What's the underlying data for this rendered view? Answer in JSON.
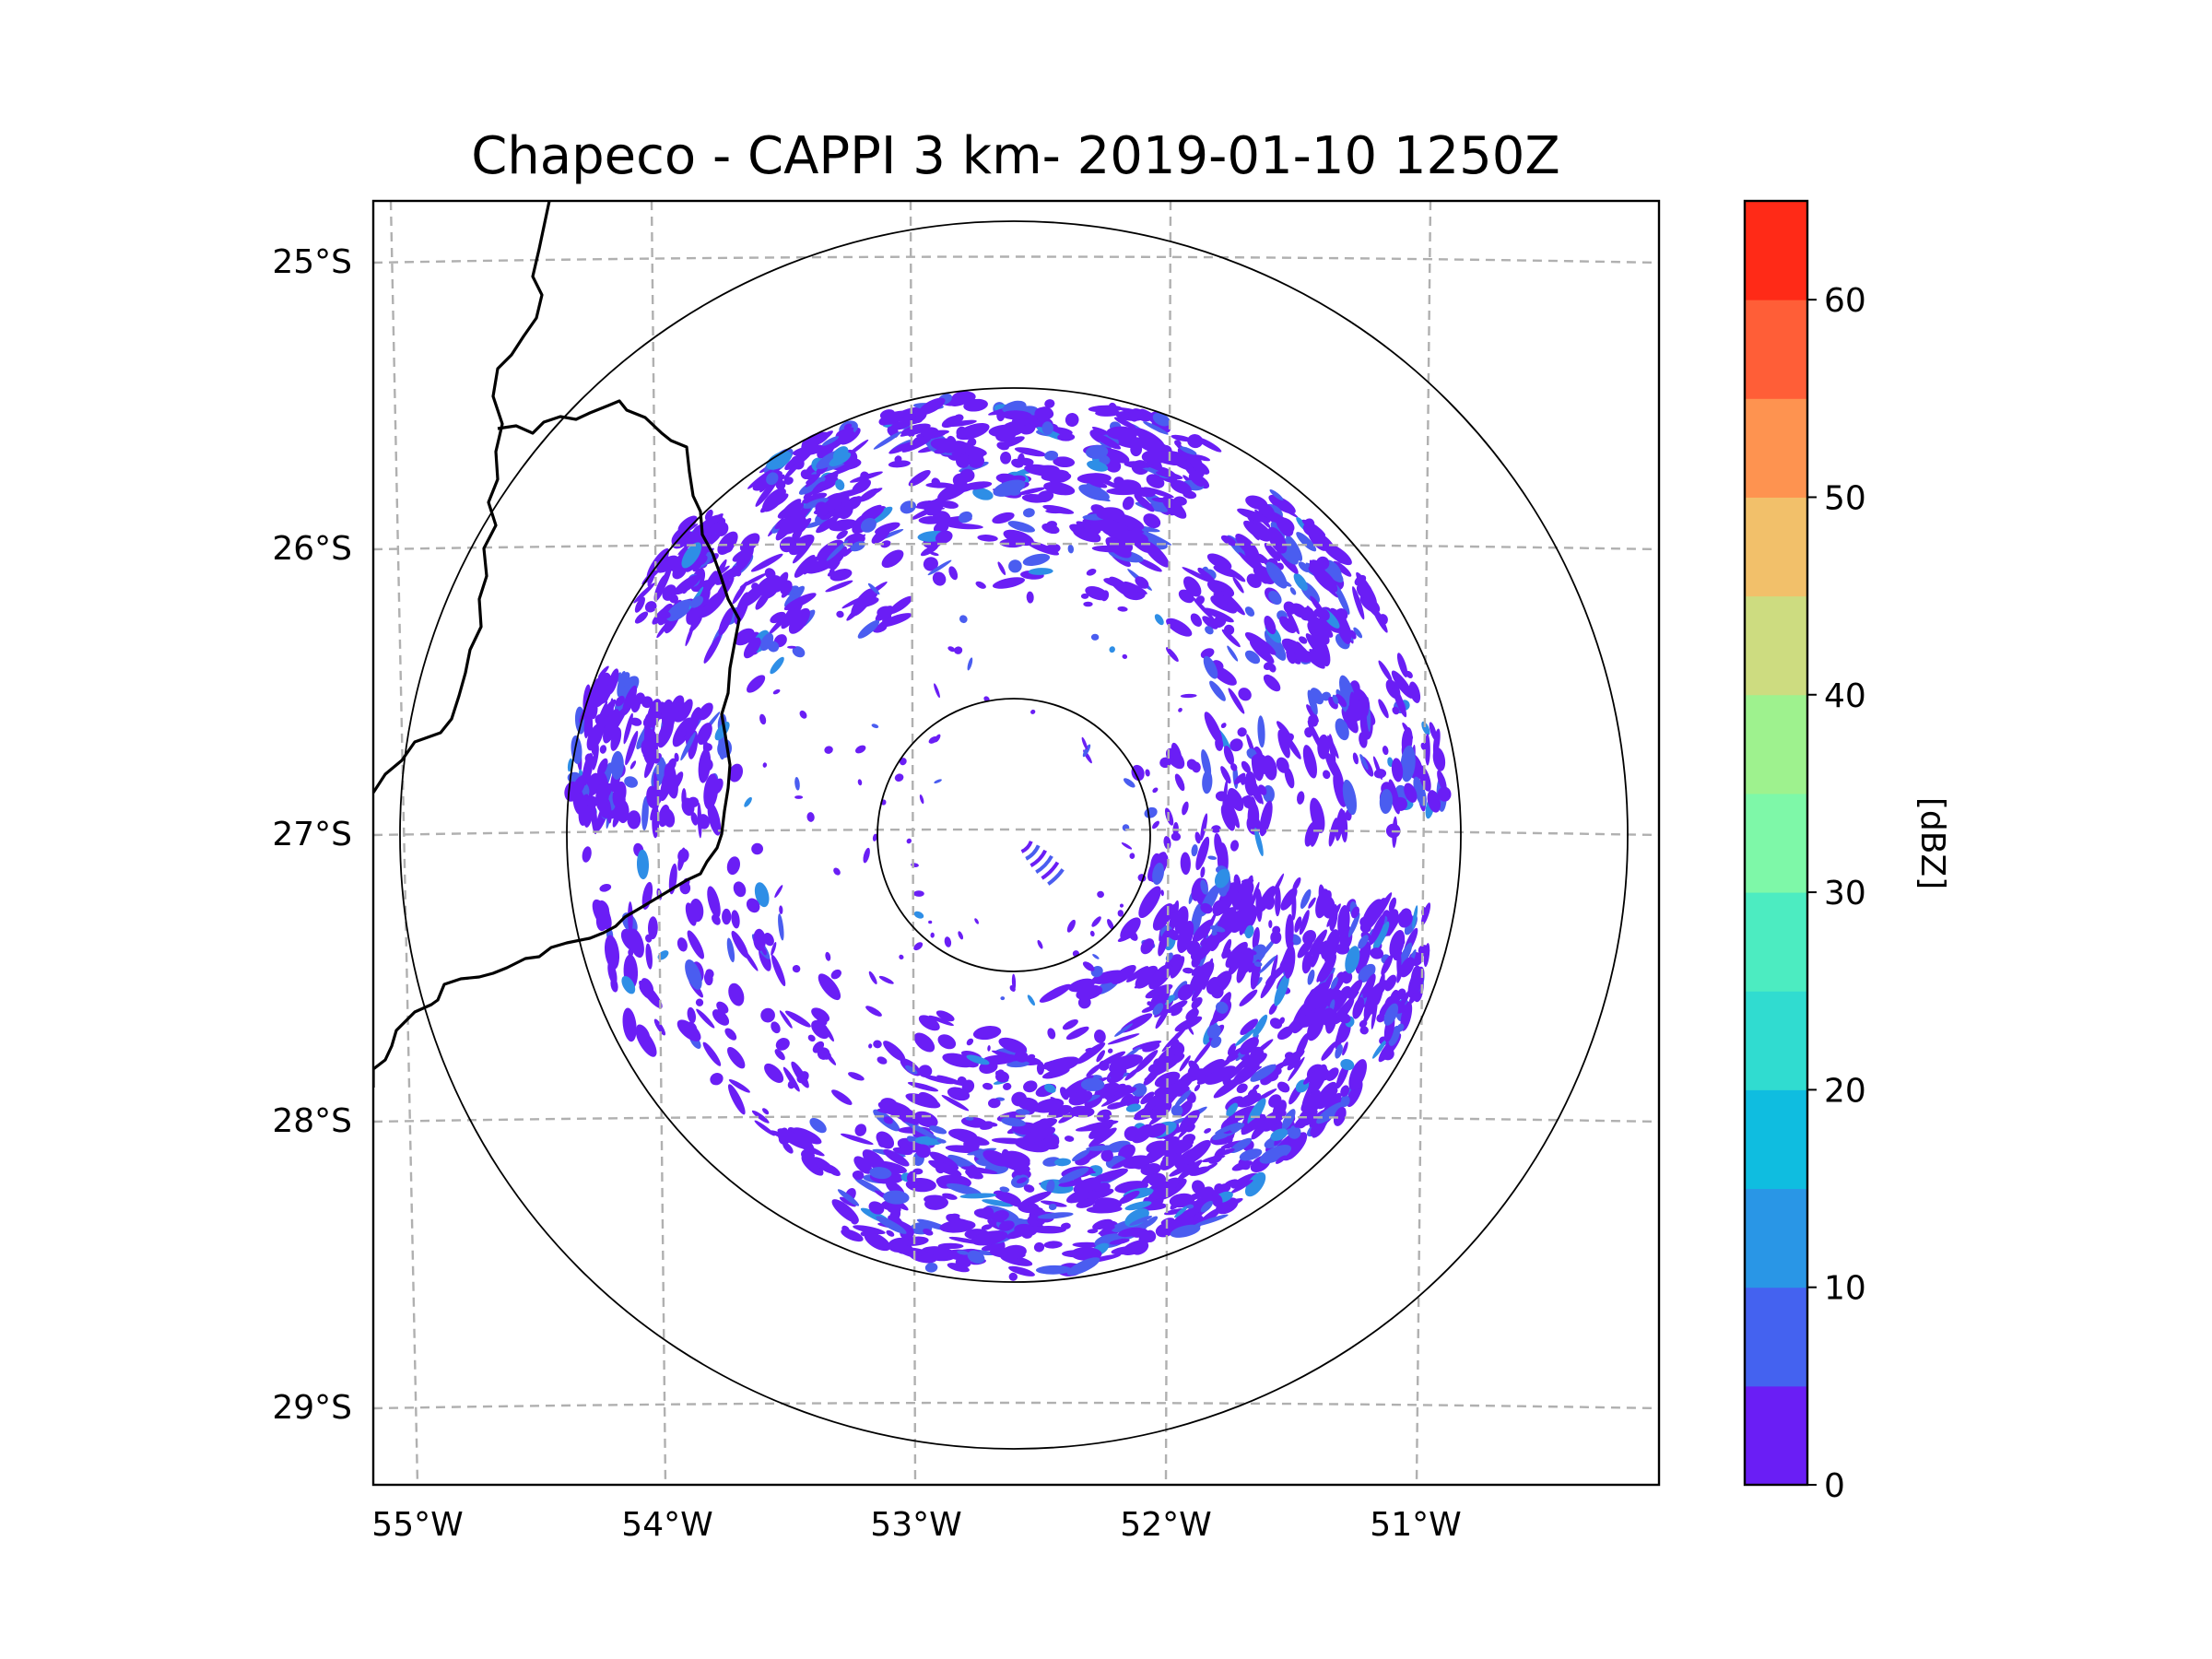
{
  "map": {
    "title": "Chapeco - CAPPI 3 km- 2019-01-10 1250Z",
    "longitude_labels": [
      {
        "text": "55°W",
        "lon": -55
      },
      {
        "text": "54°W",
        "lon": -54
      },
      {
        "text": "53°W",
        "lon": -53
      },
      {
        "text": "52°W",
        "lon": -52
      },
      {
        "text": "51°W",
        "lon": -51
      }
    ],
    "latitude_labels": [
      {
        "text": "25°S",
        "lat": -25
      },
      {
        "text": "26°S",
        "lat": -26
      },
      {
        "text": "27°S",
        "lat": -27
      },
      {
        "text": "28°S",
        "lat": -28
      },
      {
        "text": "29°S",
        "lat": -29
      }
    ],
    "extent": {
      "lon_min": -55.17,
      "lon_max": -50.05,
      "lat_min": -29.27,
      "lat_max": -24.77
    },
    "radar": {
      "name": "Chapeco",
      "lon": -52.6,
      "lat": -27.03,
      "range_rings_km": [
        50,
        150,
        250
      ]
    },
    "gridlines": "dashed gray",
    "colors": {
      "frame": "#000000",
      "gridline": "#b0b0b0",
      "boundary": "#000000",
      "range_ring": "#000000",
      "echo_primary": "#6a1ef5",
      "echo_secondary": "#4a5df0",
      "echo_tertiary": "#2e8ee6"
    }
  },
  "colorbar": {
    "label": "[dBZ]",
    "ticks": [
      "0",
      "10",
      "20",
      "30",
      "40",
      "50",
      "60"
    ],
    "tick_values": [
      0,
      10,
      20,
      30,
      40,
      50,
      60
    ],
    "min": 0,
    "max": 65,
    "levels": [
      {
        "from": 0,
        "to": 5,
        "color": "#6a1ef5"
      },
      {
        "from": 5,
        "to": 10,
        "color": "#4462f0"
      },
      {
        "from": 10,
        "to": 15,
        "color": "#2996e6"
      },
      {
        "from": 15,
        "to": 20,
        "color": "#0fbde0"
      },
      {
        "from": 20,
        "to": 25,
        "color": "#30dcd0"
      },
      {
        "from": 25,
        "to": 30,
        "color": "#4cecc1"
      },
      {
        "from": 30,
        "to": 35,
        "color": "#7ef8a8"
      },
      {
        "from": 35,
        "to": 40,
        "color": "#9ef28e"
      },
      {
        "from": 40,
        "to": 45,
        "color": "#cddc80"
      },
      {
        "from": 45,
        "to": 50,
        "color": "#f2c06a"
      },
      {
        "from": 50,
        "to": 55,
        "color": "#fe9350"
      },
      {
        "from": 55,
        "to": 60,
        "color": "#ff5e37"
      },
      {
        "from": 60,
        "to": 65,
        "color": "#ff2a17"
      }
    ]
  }
}
